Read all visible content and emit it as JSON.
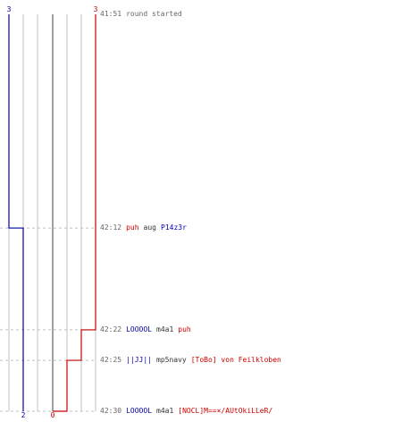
{
  "colors": {
    "team_blue": "#0000aa",
    "team_red": "#cc0000",
    "weapon_text": "#333333",
    "grid": "#c0c0c0",
    "zero_line": "#808080",
    "time_text": "#666666"
  },
  "chart_data": {
    "type": "line",
    "x_axis": "game time",
    "start_time": "41:51",
    "end_time": "42:30",
    "ylim": [
      0,
      3
    ],
    "series": [
      {
        "team": "blue",
        "start_count": 3,
        "end_count": 2,
        "steps": [
          {
            "time": "42:12",
            "count": 2
          }
        ]
      },
      {
        "team": "red",
        "start_count": 3,
        "end_count": 0,
        "steps": [
          {
            "time": "42:22",
            "count": 2
          },
          {
            "time": "42:25",
            "count": 1
          },
          {
            "time": "42:30",
            "count": 0
          }
        ]
      }
    ]
  },
  "scores": {
    "blue_start": "3",
    "red_start": "3",
    "blue_end": "2",
    "red_end": "0"
  },
  "events": [
    {
      "time": "41:51",
      "note": "round started"
    },
    {
      "time": "42:12",
      "killer": "puh",
      "killer_team": "red",
      "weapon": "aug",
      "victim": "P14z3r",
      "victim_team": "blue"
    },
    {
      "time": "42:22",
      "killer": "LOOOOL",
      "killer_team": "blue",
      "weapon": "m4a1",
      "victim": "puh",
      "victim_team": "red"
    },
    {
      "time": "42:25",
      "killer": "||JJ||",
      "killer_team": "blue",
      "weapon": "mp5navy",
      "victim": "[ToBo] von Feilkloben",
      "victim_team": "red"
    },
    {
      "time": "42:30",
      "killer": "LOOOOL",
      "killer_team": "blue",
      "weapon": "m4a1",
      "victim": "[NOCL]M==×/AUtOkiLLeR/",
      "victim_team": "red"
    }
  ]
}
